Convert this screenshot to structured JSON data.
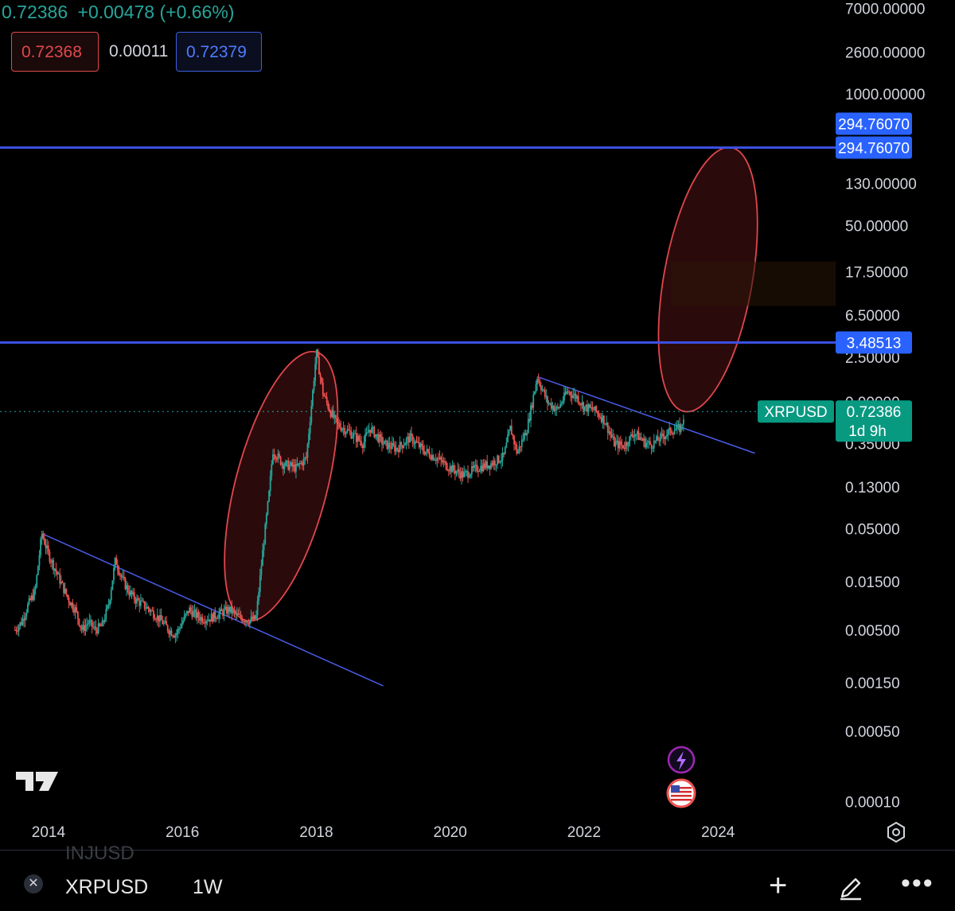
{
  "header": {
    "last_price": "0.72386",
    "change": "+0.00478 (+0.66%)",
    "sell_price": "0.72368",
    "spread": "0.00011",
    "buy_price": "0.72379"
  },
  "symbol": "XRPUSD",
  "interval": "1W",
  "ghost_symbol": "INJUSD",
  "price_label": {
    "value": "0.72386",
    "countdown": "1d 9h"
  },
  "colors": {
    "up": "#26a69a",
    "down": "#ef5350",
    "hline": "#3b4fe0",
    "trend": "#4a5ce8",
    "ellipse_stroke": "#e0474c",
    "ellipse_fill": "#3a0d10",
    "label_bg": "#2962ff"
  },
  "icons": [
    "lightning-icon",
    "us-flag-icon",
    "settings-icon",
    "close-icon",
    "plus-icon",
    "pencil-icon",
    "more-icon"
  ],
  "chart_data": {
    "type": "candlestick",
    "y_scale": "log",
    "ylim": [
      8e-05,
      8500
    ],
    "xlim": [
      2013.3,
      2025.4
    ],
    "y_ticks": [
      "7000.00000",
      "2600.00000",
      "1000.00000",
      "130.00000",
      "50.00000",
      "17.50000",
      "6.50000",
      "2.50000",
      "0.90000",
      "0.35000",
      "0.13000",
      "0.05000",
      "0.01500",
      "0.00500",
      "0.00150",
      "0.00050",
      "0.00010"
    ],
    "x_ticks": [
      "2014",
      "2016",
      "2018",
      "2020",
      "2022",
      "2024"
    ],
    "horizontal_lines": [
      {
        "value": 294.7607,
        "label": "294.76070"
      },
      {
        "value": 3.48513,
        "label": "3.48513"
      }
    ],
    "current_price": 0.72386,
    "price_path": [
      [
        2013.5,
        0.005
      ],
      [
        2013.6,
        0.006
      ],
      [
        2013.7,
        0.009
      ],
      [
        2013.8,
        0.012
      ],
      [
        2013.9,
        0.045
      ],
      [
        2014.0,
        0.028
      ],
      [
        2014.1,
        0.02
      ],
      [
        2014.2,
        0.014
      ],
      [
        2014.3,
        0.01
      ],
      [
        2014.4,
        0.008
      ],
      [
        2014.5,
        0.005
      ],
      [
        2014.6,
        0.006
      ],
      [
        2014.7,
        0.005
      ],
      [
        2014.8,
        0.0055
      ],
      [
        2014.9,
        0.009
      ],
      [
        2015.0,
        0.025
      ],
      [
        2015.1,
        0.016
      ],
      [
        2015.2,
        0.012
      ],
      [
        2015.3,
        0.01
      ],
      [
        2015.4,
        0.009
      ],
      [
        2015.5,
        0.008
      ],
      [
        2015.6,
        0.007
      ],
      [
        2015.7,
        0.006
      ],
      [
        2015.8,
        0.005
      ],
      [
        2015.9,
        0.0045
      ],
      [
        2016.0,
        0.006
      ],
      [
        2016.1,
        0.008
      ],
      [
        2016.2,
        0.007
      ],
      [
        2016.3,
        0.0065
      ],
      [
        2016.4,
        0.0065
      ],
      [
        2016.5,
        0.007
      ],
      [
        2016.6,
        0.0075
      ],
      [
        2016.7,
        0.008
      ],
      [
        2016.8,
        0.007
      ],
      [
        2016.9,
        0.0065
      ],
      [
        2017.0,
        0.0062
      ],
      [
        2017.1,
        0.0065
      ],
      [
        2017.2,
        0.03
      ],
      [
        2017.3,
        0.12
      ],
      [
        2017.35,
        0.3
      ],
      [
        2017.5,
        0.22
      ],
      [
        2017.7,
        0.2
      ],
      [
        2017.85,
        0.25
      ],
      [
        2017.95,
        1.2
      ],
      [
        2018.0,
        2.8
      ],
      [
        2018.1,
        1.1
      ],
      [
        2018.2,
        0.75
      ],
      [
        2018.3,
        0.55
      ],
      [
        2018.5,
        0.45
      ],
      [
        2018.7,
        0.35
      ],
      [
        2018.8,
        0.5
      ],
      [
        2019.0,
        0.35
      ],
      [
        2019.2,
        0.31
      ],
      [
        2019.4,
        0.4
      ],
      [
        2019.6,
        0.3
      ],
      [
        2019.8,
        0.25
      ],
      [
        2020.0,
        0.2
      ],
      [
        2020.2,
        0.17
      ],
      [
        2020.4,
        0.2
      ],
      [
        2020.6,
        0.22
      ],
      [
        2020.8,
        0.26
      ],
      [
        2020.9,
        0.5
      ],
      [
        2021.0,
        0.28
      ],
      [
        2021.15,
        0.5
      ],
      [
        2021.3,
        1.6
      ],
      [
        2021.45,
        0.9
      ],
      [
        2021.6,
        0.75
      ],
      [
        2021.75,
        1.15
      ],
      [
        2021.9,
        1.0
      ],
      [
        2022.0,
        0.8
      ],
      [
        2022.15,
        0.75
      ],
      [
        2022.3,
        0.6
      ],
      [
        2022.45,
        0.35
      ],
      [
        2022.6,
        0.33
      ],
      [
        2022.75,
        0.45
      ],
      [
        2022.9,
        0.36
      ],
      [
        2023.0,
        0.34
      ],
      [
        2023.15,
        0.4
      ],
      [
        2023.3,
        0.47
      ],
      [
        2023.45,
        0.5
      ],
      [
        2023.5,
        0.72386
      ]
    ]
  }
}
